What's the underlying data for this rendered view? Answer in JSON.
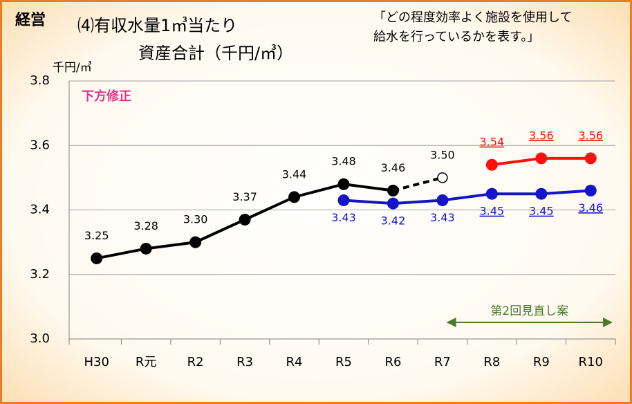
{
  "chart_data": {
    "type": "line",
    "section": "経営",
    "title": [
      "⑷有収水量1㎥当たり",
      "資産合計（千円/㎥）"
    ],
    "note": [
      "「どの程度効率よく施設を使用して",
      "給水を行っているかを表す。」"
    ],
    "y_unit": "千円/㎥",
    "revision_label": "下方修正",
    "annotation": "第2回見直し案",
    "categories": [
      "H30",
      "R元",
      "R2",
      "R3",
      "R4",
      "R5",
      "R6",
      "R7",
      "R8",
      "R9",
      "R10"
    ],
    "ylim": [
      3.0,
      3.8
    ],
    "yticks": [
      {
        "value": 3.0,
        "label": "3.0"
      },
      3.2,
      3.4,
      3.6,
      3.8
    ],
    "grid": true,
    "series": [
      {
        "color": "#000000",
        "label_position": "above",
        "values": [
          3.25,
          3.28,
          3.3,
          3.37,
          3.44,
          3.48,
          3.46,
          null,
          null,
          null,
          null
        ],
        "value_labels": [
          "3.25",
          "3.28",
          "3.30",
          "3.37",
          "3.44",
          "3.48",
          "3.46",
          null,
          null,
          null,
          null
        ]
      },
      {
        "color": "#000000",
        "dashed": true,
        "hollow_last": true,
        "label_position": "above",
        "values": [
          null,
          null,
          null,
          null,
          null,
          null,
          3.46,
          3.5,
          null,
          null,
          null
        ],
        "value_labels": [
          null,
          null,
          null,
          null,
          null,
          null,
          null,
          "3.50",
          null,
          null,
          null
        ]
      },
      {
        "color": "#1414c8",
        "label_position": "below",
        "values": [
          null,
          null,
          null,
          null,
          null,
          3.43,
          3.42,
          3.43,
          3.45,
          3.45,
          3.46
        ],
        "value_labels": [
          null,
          null,
          null,
          null,
          null,
          "3.43",
          "3.42",
          "3.43",
          "3.45",
          "3.45",
          "3.46"
        ],
        "underlined": [
          false,
          false,
          false,
          false,
          false,
          false,
          false,
          false,
          true,
          true,
          true
        ]
      },
      {
        "color": "#ff1010",
        "label_position": "above",
        "values": [
          null,
          null,
          null,
          null,
          null,
          null,
          null,
          null,
          3.54,
          3.56,
          3.56
        ],
        "value_labels": [
          null,
          null,
          null,
          null,
          null,
          null,
          null,
          null,
          "3.54",
          "3.56",
          "3.56"
        ],
        "underlined": [
          false,
          false,
          false,
          false,
          false,
          false,
          false,
          false,
          true,
          true,
          true
        ]
      }
    ]
  }
}
